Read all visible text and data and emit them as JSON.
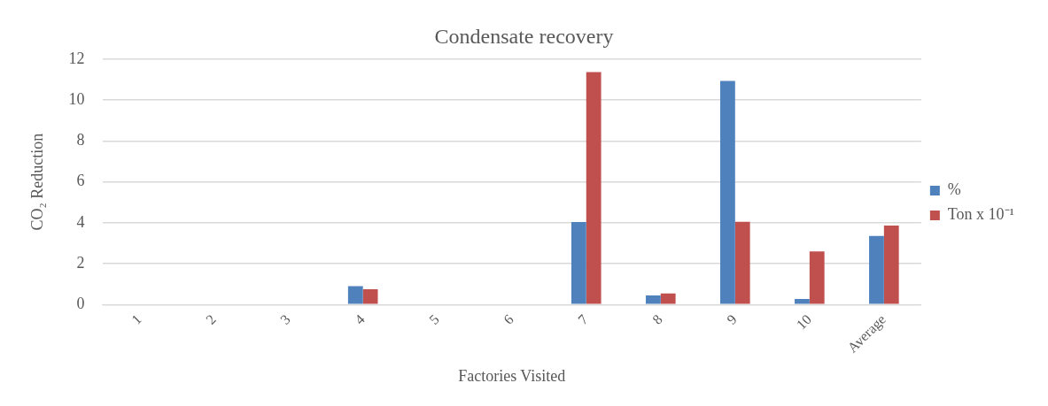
{
  "chart_data": {
    "type": "bar",
    "title": "Condensate recovery",
    "xlabel": "Factories Visited",
    "ylabel": "CO₂ Reduction",
    "categories": [
      "1",
      "2",
      "3",
      "4",
      "5",
      "6",
      "7",
      "8",
      "9",
      "10",
      "Average"
    ],
    "series": [
      {
        "name": "%",
        "color": "#4f81bd",
        "values": [
          0,
          0,
          0,
          0.9,
          0,
          0,
          4.04,
          0.45,
          10.93,
          0.27,
          3.35
        ]
      },
      {
        "name": "Ton x 10⁻¹",
        "color": "#c0504d",
        "values": [
          0,
          0,
          0,
          0.75,
          0,
          0,
          11.36,
          0.54,
          4.05,
          2.6,
          3.86
        ]
      }
    ],
    "ylim": [
      0,
      12
    ],
    "yticks": [
      0,
      2,
      4,
      6,
      8,
      10,
      12
    ],
    "grid": "y",
    "legend": "right"
  }
}
